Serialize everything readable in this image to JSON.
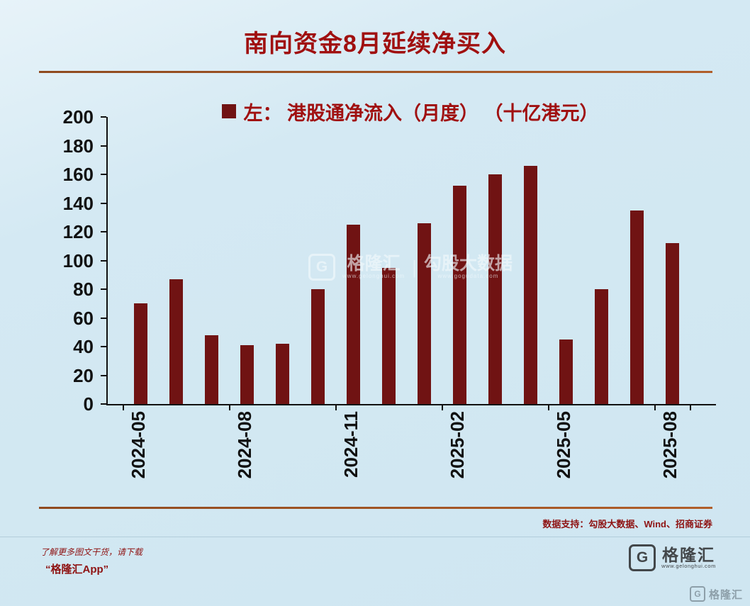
{
  "header": {
    "title": "南向资金8月延续净买入"
  },
  "chart_data": {
    "type": "bar",
    "title": "南向资金8月延续净买入",
    "legend": "左： 港股通净流入（月度） （十亿港元）",
    "categories": [
      "2024-05",
      "2024-06",
      "2024-07",
      "2024-08",
      "2024-09",
      "2024-10",
      "2024-11",
      "2024-12",
      "2025-01",
      "2025-02",
      "2025-03",
      "2025-04",
      "2025-05",
      "2025-06",
      "2025-07",
      "2025-08"
    ],
    "values": [
      70,
      87,
      48,
      41,
      42,
      80,
      125,
      95,
      126,
      152,
      160,
      166,
      45,
      80,
      135,
      112
    ],
    "x_tick_labels": [
      "2024-05",
      "2024-08",
      "2024-11",
      "2025-02",
      "2025-05",
      "2025-08"
    ],
    "y_ticks": [
      0,
      20,
      40,
      60,
      80,
      100,
      120,
      140,
      160,
      180,
      200
    ],
    "ylim": [
      0,
      200
    ],
    "ylabel": "十亿港元",
    "grid": false,
    "legend_position": "top",
    "bar_color": "#701313"
  },
  "watermark": {
    "logo_letter": "G",
    "brand": "格隆汇",
    "brand_url": "www.gelonghui.com",
    "separator": "|",
    "partner": "勾股大数据",
    "partner_url": "www.gogudata.com"
  },
  "footer": {
    "source": "数据支持：勾股大数据、Wind、招商证券",
    "promo_line1": "了解更多图文干货，请下载",
    "promo_line2": "“格隆汇App”",
    "logo": {
      "letter": "G",
      "brand": "格隆汇",
      "url": "www.gelonghui.com"
    },
    "corner_logo": {
      "letter": "G",
      "brand": "格隆汇"
    }
  },
  "colors": {
    "background": "#d3e9f3",
    "bar": "#701313",
    "title_red": "#a01010",
    "source_red": "#8e1212",
    "divider": "#9f5526",
    "axis": "#111111"
  }
}
